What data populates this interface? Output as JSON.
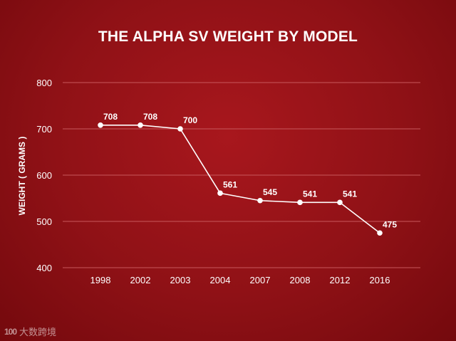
{
  "chart_data": {
    "type": "line",
    "title": "THE ALPHA SV WEIGHT BY MODEL",
    "xlabel": "",
    "ylabel": "WEIGHT ( GRAMS )",
    "categories": [
      "1998",
      "2002",
      "2003",
      "2004",
      "2007",
      "2008",
      "2012",
      "2016"
    ],
    "values": [
      708,
      708,
      700,
      561,
      545,
      541,
      541,
      475
    ],
    "data_labels": [
      "708",
      "708",
      "700",
      "561",
      "545",
      "541",
      "541",
      "475"
    ],
    "ylim": [
      400,
      800
    ],
    "yticks": [
      "400",
      "500",
      "600",
      "700",
      "800"
    ],
    "grid": true,
    "colors": {
      "line": "#ffffff",
      "grid": "#c8585c",
      "text": "#ffffff"
    }
  },
  "watermark": {
    "logo": "100",
    "text": "大数跨境"
  }
}
